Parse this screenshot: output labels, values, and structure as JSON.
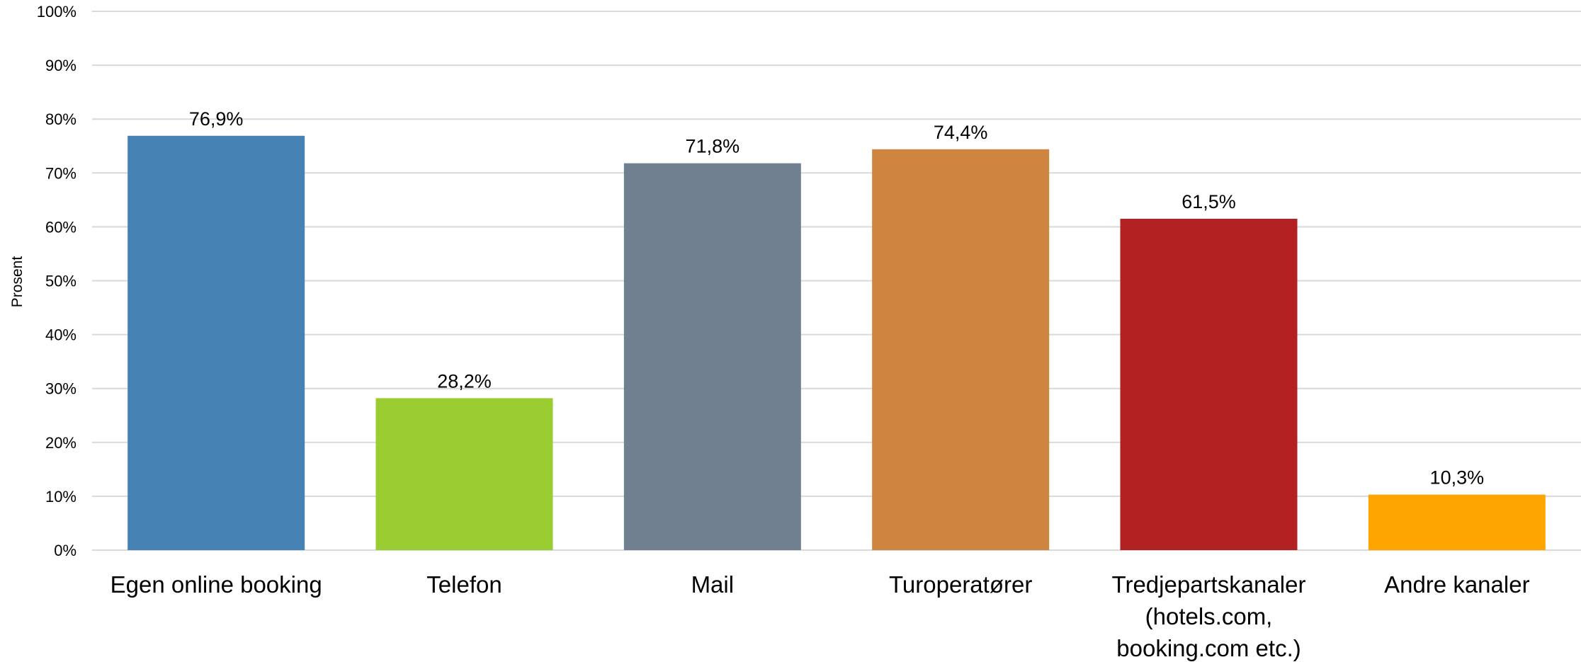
{
  "chart_data": {
    "type": "bar",
    "title": "",
    "xlabel": "",
    "ylabel": "Prosent",
    "ylim": [
      0,
      100
    ],
    "y_ticks": [
      "0%",
      "10%",
      "20%",
      "30%",
      "40%",
      "50%",
      "60%",
      "70%",
      "80%",
      "90%",
      "100%"
    ],
    "grid": true,
    "legend": "none",
    "categories": [
      "Egen online booking",
      "Telefon",
      "Mail",
      "Turoperatører",
      "Tredjepartskanaler (hotels.com, booking.com etc.)",
      "Andre kanaler"
    ],
    "category_label_lines": [
      [
        "Egen online booking"
      ],
      [
        "Telefon"
      ],
      [
        "Mail"
      ],
      [
        "Turoperatører"
      ],
      [
        "Tredjepartskanaler",
        "(hotels.com,",
        "booking.com etc.)"
      ],
      [
        "Andre kanaler"
      ]
    ],
    "values": [
      76.9,
      28.2,
      71.8,
      74.4,
      61.5,
      10.3
    ],
    "data_labels": [
      "76,9%",
      "28,2%",
      "71,8%",
      "74,4%",
      "61,5%",
      "10,3%"
    ],
    "colors": [
      "#4682b4",
      "#9acd32",
      "#708090",
      "#cd853f",
      "#b22222",
      "#ffa500"
    ]
  }
}
